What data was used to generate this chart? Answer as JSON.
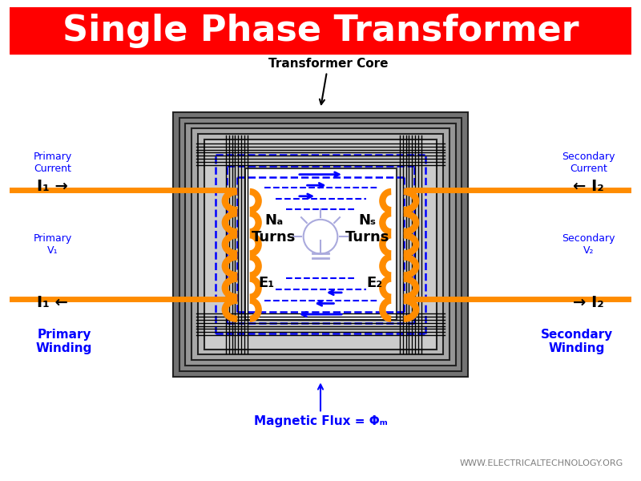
{
  "title": "Single Phase Transformer",
  "title_bg": "#ff0000",
  "title_color": "#ffffff",
  "title_fontsize": 32,
  "body_bg": "#ffffff",
  "watermark": "WWW.ELECTRICALTECHNOLOGY.ORG",
  "core_label": "Transformer Core",
  "core_label_color": "#000000",
  "flux_label": "Magnetic Flux = Φₘ",
  "flux_label_color": "#0000ff",
  "primary_current_label": "Primary\nCurrent",
  "secondary_current_label": "Secondary\nCurrent",
  "primary_v_label": "Primary\nV₁",
  "secondary_v_label": "Secondary\nV₂",
  "i1_top_label": "I₁ →",
  "i1_bottom_label": "I₁ ←",
  "i2_top_label": "← I₂",
  "i2_bottom_label": "→ I₂",
  "np_label": "Nₐ\nTurns",
  "ns_label": "Nₛ\nTurns",
  "e1_label": "E₁",
  "e2_label": "E₂",
  "primary_winding_label": "Primary\nWinding",
  "secondary_winding_label": "Secondary\nWinding",
  "coil_color": "#ff8c00",
  "flux_arrow_color": "#0000ff",
  "label_color_blue": "#0000ff",
  "label_color_black": "#000000"
}
